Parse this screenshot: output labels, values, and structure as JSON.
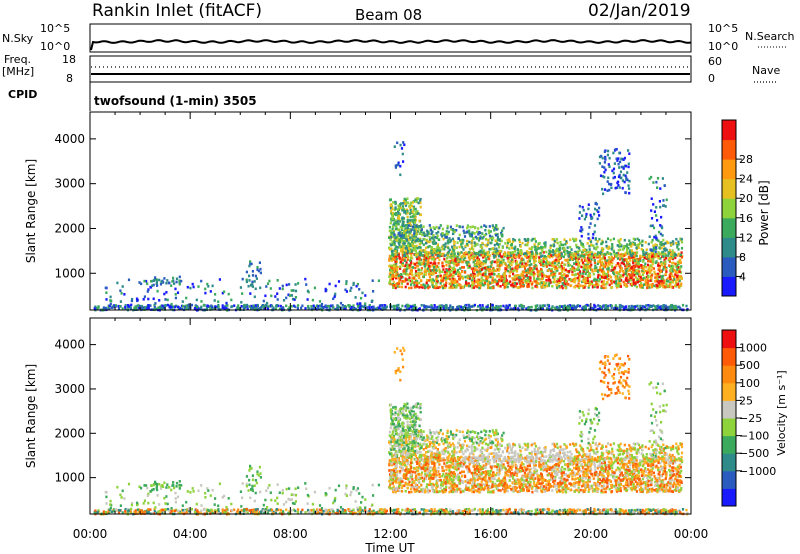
{
  "header": {
    "station": "Rankin Inlet (fitACF)",
    "beam": "Beam 08",
    "date": "02/Jan/2019"
  },
  "top_panels": {
    "nsky_label": "N.Sky",
    "nsky_ticks": [
      "10^5",
      "10^0"
    ],
    "nsearch_label": "N.Search",
    "nsearch_ticks": [
      "10^5",
      "10^0"
    ],
    "freq_label": "Freq.",
    "freq_unit": "[MHz]",
    "freq_ticks": [
      "18",
      "8"
    ],
    "nave_label": "Nave",
    "nave_ticks": [
      "60",
      "0"
    ],
    "cpid_label": "CPID",
    "cpid_value": "twofsound (1-min) 3505"
  },
  "chart_data": [
    {
      "type": "heatmap",
      "name": "power",
      "ylabel": "Slant Range [km]",
      "ylim": [
        180,
        4600
      ],
      "yticks": [
        "1000",
        "2000",
        "3000",
        "4000"
      ],
      "xlim": [
        0,
        24
      ],
      "colorbar_label": "Power [dB]",
      "colorbar_ticks": [
        "4",
        "8",
        "12",
        "16",
        "20",
        "24",
        "28"
      ],
      "colorbar_colors": [
        "#1a1aff",
        "#2a5cc0",
        "#2f8a8a",
        "#3caa5c",
        "#8ed23c",
        "#e6c020",
        "#ff9a10",
        "#ff5a08",
        "#ee1010"
      ]
    },
    {
      "type": "heatmap",
      "name": "velocity",
      "ylabel": "Slant Range [km]",
      "ylim": [
        180,
        4600
      ],
      "yticks": [
        "1000",
        "2000",
        "3000",
        "4000"
      ],
      "xlim": [
        0,
        24
      ],
      "xticks": [
        "00:00",
        "04:00",
        "08:00",
        "12:00",
        "16:00",
        "20:00",
        "00:00"
      ],
      "xlabel": "Time UT",
      "colorbar_label": "Velocity [m s⁻¹]",
      "colorbar_ticks": [
        "1000",
        "500",
        "100",
        "25",
        "−25",
        "−100",
        "−500",
        "−1000"
      ],
      "colorbar_colors": [
        "#1a1aff",
        "#2a5cc0",
        "#2f8a8a",
        "#3caa5c",
        "#8ed23c",
        "#c8c8c0",
        "#ffb020",
        "#ff8a10",
        "#ff5a08",
        "#ee1010"
      ]
    }
  ]
}
